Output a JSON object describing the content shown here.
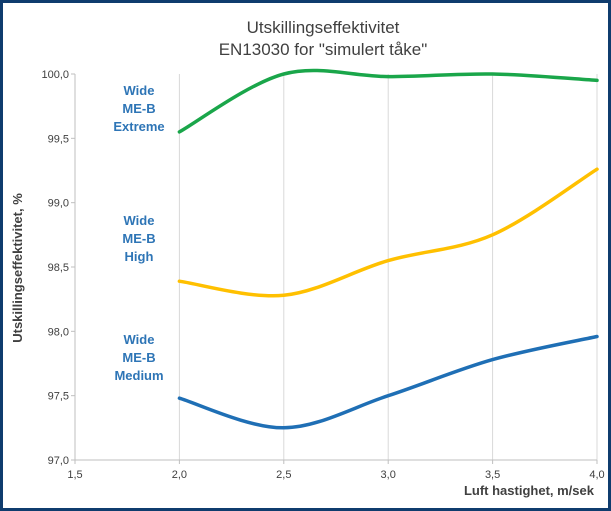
{
  "chart_data": {
    "type": "line",
    "title": [
      "Utskillingseffektivitet",
      "EN13030 for \"simulert tåke\""
    ],
    "xlabel": "Luft hastighet, m/sek",
    "ylabel": "Utskillingseffektivitet, %",
    "xlim": [
      1.5,
      4.0
    ],
    "ylim": [
      97.0,
      100.0
    ],
    "x_ticks": [
      1.5,
      2.0,
      2.5,
      3.0,
      3.5,
      4.0
    ],
    "x_tick_labels": [
      "1,5",
      "2,0",
      "2,5",
      "3,0",
      "3,5",
      "4,0"
    ],
    "y_ticks": [
      97.0,
      97.5,
      98.0,
      98.5,
      99.0,
      99.5,
      100.0
    ],
    "y_tick_labels": [
      "97,0",
      "97,5",
      "98,0",
      "98,5",
      "99,0",
      "99,5",
      "100,0"
    ],
    "grid": "vertical",
    "series": [
      {
        "name": [
          "Wide",
          "ME-B",
          "Extreme"
        ],
        "color": "#1aa64a",
        "x": [
          2.0,
          2.5,
          3.0,
          3.5,
          4.0
        ],
        "values": [
          99.55,
          100.0,
          99.98,
          100.0,
          99.95
        ]
      },
      {
        "name": [
          "Wide",
          "ME-B",
          "High"
        ],
        "color": "#ffc000",
        "x": [
          2.0,
          2.5,
          3.0,
          3.5,
          4.0
        ],
        "values": [
          98.39,
          98.28,
          98.55,
          98.75,
          99.26
        ]
      },
      {
        "name": [
          "Wide",
          "ME-B",
          "Medium"
        ],
        "color": "#1f6fb5",
        "x": [
          2.0,
          2.5,
          3.0,
          3.5,
          4.0
        ],
        "values": [
          97.48,
          97.25,
          97.5,
          97.78,
          97.96
        ]
      }
    ],
    "label_color": "#2e75b6"
  }
}
